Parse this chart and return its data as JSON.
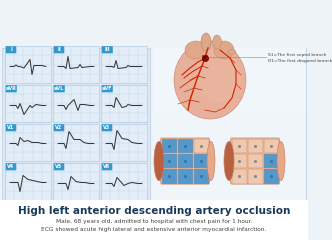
{
  "background_color": "#eef3f8",
  "ecg_panel_bg": "#dce8f5",
  "grid_color": "#b8cce4",
  "ecg_line_color": "#555555",
  "title": "High left anterior descending artery occlusion",
  "subtitle1": "Male, 68 years old, admitted to hospital with chest pain for 1 hour.",
  "subtitle2": "ECG showed acute high lateral and extensive anterior myocardial infarction.",
  "title_color": "#1a3a5c",
  "subtitle_color": "#444444",
  "title_fontsize": 7.5,
  "subtitle_fontsize": 4.2,
  "lead_labels": [
    "I",
    "II",
    "III",
    "aVR",
    "aVL",
    "aVF",
    "V1",
    "V2",
    "V3",
    "V4",
    "V5",
    "V6"
  ],
  "label_bg_color": "#3399cc",
  "label_text_color": "#ffffff",
  "heart_annotation1": "S1=The first septal branch",
  "heart_annotation2": "D1=The first diagonal branch",
  "annotation_color": "#555555",
  "heart_skin_color": "#e8b09a",
  "heart_dark_color": "#c07858",
  "vessel_color": "#cc2200",
  "vessel_highlight": "#dd3300",
  "infarct_color": "#5599cc",
  "normal_seg_color": "#f0c8b0",
  "cavity_color": "#b86040",
  "panel_border_color": "#c0d0e0",
  "bottom_bg": "#ffffff",
  "separator_color": "#c0d0e0"
}
